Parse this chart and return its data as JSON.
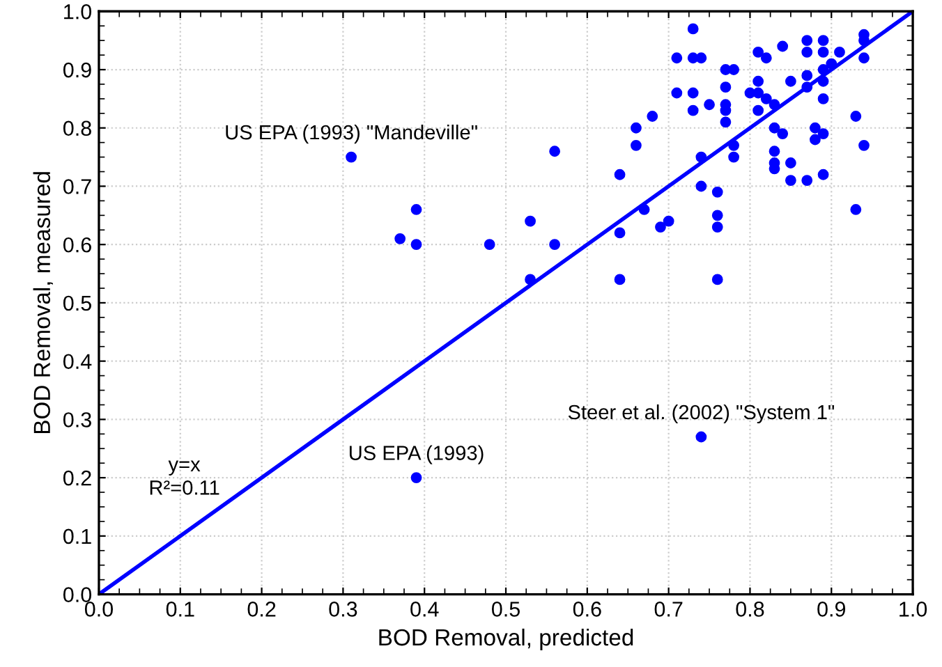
{
  "chart_data": {
    "type": "scatter",
    "xlabel": "BOD Removal, predicted",
    "ylabel": "BOD Removal, measured",
    "xlim": [
      0,
      1
    ],
    "ylim": [
      0,
      1
    ],
    "xticks": [
      {
        "value": 0,
        "label": "0.0"
      },
      0.1,
      0.2,
      0.3,
      0.4,
      0.5,
      0.6,
      0.7,
      0.8,
      0.9,
      {
        "value": 1,
        "label": "1.0"
      }
    ],
    "yticks": [
      {
        "value": 0,
        "label": "0.0"
      },
      0.1,
      0.2,
      0.3,
      0.4,
      0.5,
      0.6,
      0.7,
      0.8,
      0.9,
      {
        "value": 1,
        "label": "1.0"
      }
    ],
    "grid": true,
    "marker": "circle",
    "series": [
      {
        "color": "#0000ff",
        "x": [
          0.73,
          0.71,
          0.73,
          0.74,
          0.84,
          0.87,
          0.87,
          0.89,
          0.89,
          0.91,
          0.94,
          0.94,
          0.94,
          0.81,
          0.82,
          0.77,
          0.78,
          0.77,
          0.71,
          0.73,
          0.75,
          0.73,
          0.68,
          0.81,
          0.85,
          0.87,
          0.87,
          0.89,
          0.9,
          0.89,
          0.89,
          0.8,
          0.81,
          0.82,
          0.83,
          0.81,
          0.77,
          0.77,
          0.77,
          0.66,
          0.66,
          0.64,
          0.83,
          0.84,
          0.83,
          0.83,
          0.83,
          0.85,
          0.85,
          0.87,
          0.88,
          0.88,
          0.89,
          0.89,
          0.93,
          0.94,
          0.78,
          0.78,
          0.74,
          0.74,
          0.76,
          0.76,
          0.67,
          0.7,
          0.93,
          0.64,
          0.69,
          0.76,
          0.64,
          0.76,
          0.31,
          0.39,
          0.37,
          0.39,
          0.48,
          0.53,
          0.53,
          0.56,
          0.56,
          0.39,
          0.74
        ],
        "values": [
          0.97,
          0.92,
          0.92,
          0.92,
          0.94,
          0.95,
          0.93,
          0.95,
          0.93,
          0.93,
          0.96,
          0.95,
          0.92,
          0.93,
          0.92,
          0.9,
          0.9,
          0.87,
          0.86,
          0.86,
          0.84,
          0.83,
          0.82,
          0.88,
          0.88,
          0.89,
          0.87,
          0.9,
          0.91,
          0.88,
          0.85,
          0.86,
          0.86,
          0.85,
          0.84,
          0.83,
          0.84,
          0.83,
          0.81,
          0.8,
          0.77,
          0.72,
          0.8,
          0.79,
          0.76,
          0.74,
          0.73,
          0.74,
          0.71,
          0.71,
          0.8,
          0.78,
          0.79,
          0.72,
          0.82,
          0.77,
          0.77,
          0.75,
          0.75,
          0.7,
          0.69,
          0.65,
          0.66,
          0.64,
          0.66,
          0.62,
          0.63,
          0.63,
          0.54,
          0.54,
          0.75,
          0.66,
          0.61,
          0.6,
          0.6,
          0.54,
          0.64,
          0.76,
          0.6,
          0.2,
          0.27
        ]
      },
      {
        "type": "line",
        "color": "#0000ff",
        "line_style": "solid",
        "marker": "none",
        "x": [
          0,
          1
        ],
        "values": [
          0,
          1
        ]
      }
    ],
    "annotations": [
      {
        "text": "US EPA (1993) \"Mandeville\"",
        "x": 0.31,
        "y": 0.75
      },
      {
        "text": "US EPA (1993)",
        "x": 0.39,
        "y": 0.2
      },
      {
        "text": "Steer et al. (2002) \"System 1\"",
        "x": 0.74,
        "y": 0.27
      },
      "y=x\nR²=0.11"
    ]
  }
}
